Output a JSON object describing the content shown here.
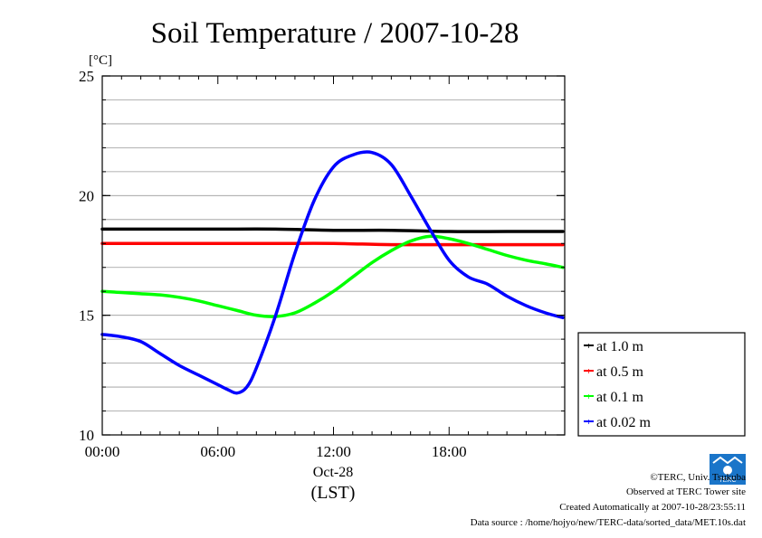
{
  "chart_data": {
    "type": "line",
    "title": "Soil Temperature / 2007-10-28",
    "ylabel": "[°C]",
    "xlabel": "(LST)",
    "date_label": "Oct-28",
    "ylim": [
      10,
      25
    ],
    "xlim": [
      0,
      24
    ],
    "y_ticks": [
      "10",
      "15",
      "20",
      "25"
    ],
    "x_ticks": [
      {
        "hour": 0,
        "label": "00:00"
      },
      {
        "hour": 6,
        "label": "06:00"
      },
      {
        "hour": 12,
        "label": "12:00"
      },
      {
        "hour": 18,
        "label": "18:00"
      }
    ],
    "grid": true,
    "legend_position": "right-bottom",
    "series": [
      {
        "name": "at 1.0 m",
        "color": "#000000",
        "x": [
          0,
          3,
          6,
          9,
          12,
          15,
          18,
          21,
          23.9
        ],
        "y": [
          18.6,
          18.6,
          18.6,
          18.6,
          18.55,
          18.55,
          18.5,
          18.5,
          18.5
        ]
      },
      {
        "name": "at 0.5 m",
        "color": "#ff0000",
        "x": [
          0,
          3,
          6,
          9,
          12,
          15,
          18,
          21,
          23.9
        ],
        "y": [
          18.0,
          18.0,
          18.0,
          18.0,
          18.0,
          17.95,
          17.95,
          17.95,
          17.95
        ]
      },
      {
        "name": "at 0.1 m",
        "color": "#00ff00",
        "x": [
          0,
          1,
          2,
          3,
          4,
          5,
          6,
          7,
          8,
          9,
          10,
          11,
          12,
          13,
          14,
          15,
          16,
          17,
          18,
          19,
          20,
          21,
          22,
          23,
          23.9
        ],
        "y": [
          16.0,
          15.95,
          15.9,
          15.85,
          15.75,
          15.6,
          15.4,
          15.2,
          15.0,
          14.95,
          15.1,
          15.5,
          16.0,
          16.6,
          17.2,
          17.7,
          18.1,
          18.3,
          18.2,
          18.0,
          17.75,
          17.5,
          17.3,
          17.15,
          17.0
        ]
      },
      {
        "name": "at 0.02 m",
        "color": "#0000ff",
        "x": [
          0,
          1,
          2,
          3,
          4,
          5,
          6,
          6.5,
          7,
          7.5,
          8,
          9,
          10,
          11,
          12,
          13,
          14,
          15,
          16,
          17,
          18,
          19,
          20,
          21,
          22,
          23,
          23.9
        ],
        "y": [
          14.2,
          14.1,
          13.9,
          13.4,
          12.9,
          12.5,
          12.1,
          11.9,
          11.75,
          12.0,
          12.8,
          15.0,
          17.6,
          19.8,
          21.2,
          21.7,
          21.8,
          21.3,
          20.0,
          18.6,
          17.3,
          16.6,
          16.3,
          15.8,
          15.4,
          15.1,
          14.9
        ]
      }
    ]
  },
  "footer": {
    "copyright": "©TERC, Univ. Tsukuba",
    "observed": "Observed at TERC Tower site",
    "created": "Created Automatically at 2007-10-28/23:55:11",
    "source": "Data source : /home/hojyo/new/TERC-data/sorted_data/MET.10s.dat"
  },
  "logo_text": "TERC",
  "colors": {
    "background": "#ffffff",
    "grid": "#9a9a9a",
    "frame": "#000000"
  }
}
